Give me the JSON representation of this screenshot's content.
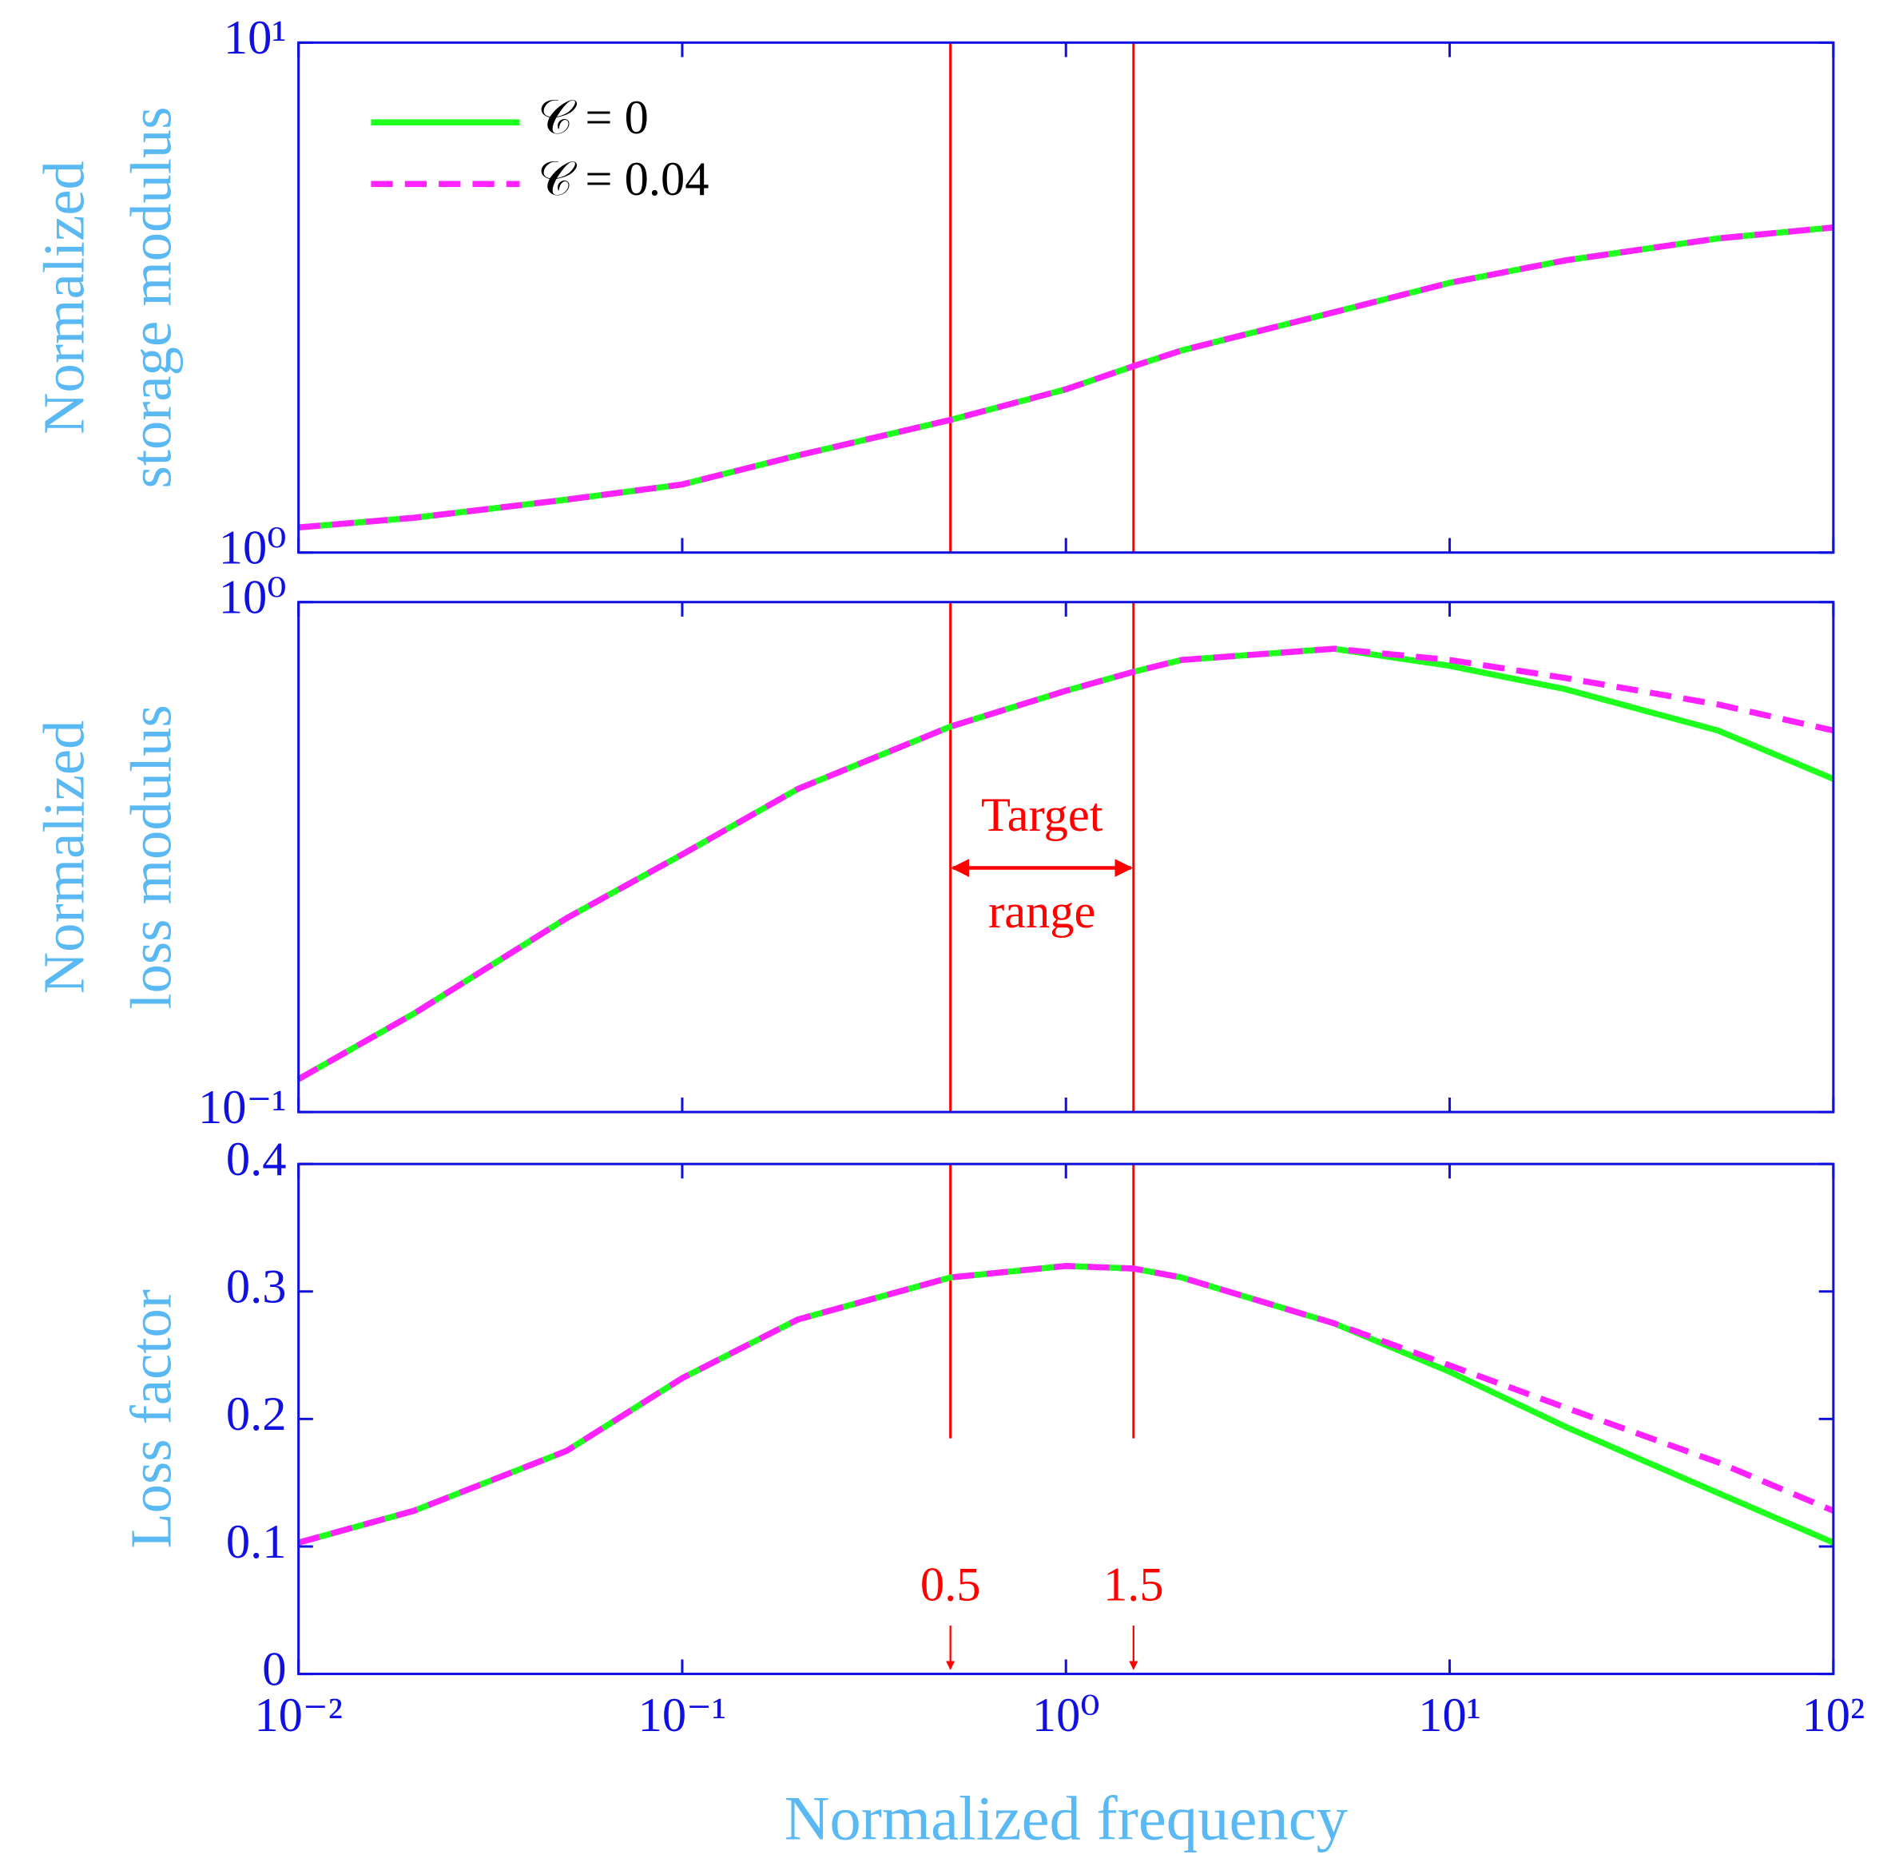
{
  "chart_data": [
    {
      "type": "line",
      "ylabel": [
        "Normalized",
        "storage modulus"
      ],
      "xscale": "log",
      "yscale": "log",
      "xlim": [
        0.01,
        100
      ],
      "xticks": [
        0.01,
        0.1,
        1,
        10,
        100
      ],
      "ylim": [
        1,
        10
      ],
      "yticks": [
        {
          "value": 1,
          "label": "10⁰"
        },
        {
          "value": 10,
          "label": "10¹"
        }
      ],
      "x": [
        0.01,
        0.02,
        0.05,
        0.1,
        0.2,
        0.5,
        1,
        1.5,
        2,
        5,
        10,
        20,
        50,
        100
      ],
      "series": [
        {
          "name": "𝒞 = 0",
          "color": "#1eff1e",
          "dash": false,
          "values": [
            1.12,
            1.17,
            1.27,
            1.36,
            1.55,
            1.82,
            2.09,
            2.32,
            2.49,
            2.96,
            3.38,
            3.74,
            4.13,
            4.34
          ]
        },
        {
          "name": "𝒞 = 0.04",
          "color": "#ff22ff",
          "dash": true,
          "values": [
            1.12,
            1.17,
            1.27,
            1.36,
            1.55,
            1.82,
            2.09,
            2.32,
            2.49,
            2.96,
            3.38,
            3.74,
            4.13,
            4.34
          ]
        }
      ],
      "legend": "upper left",
      "vlines": [
        0.5,
        1.5
      ],
      "vline_color": "#ff0000"
    },
    {
      "type": "line",
      "ylabel": [
        "Normalized",
        "loss modulus"
      ],
      "xscale": "log",
      "yscale": "log",
      "xlim": [
        0.01,
        100
      ],
      "xticks": [
        0.01,
        0.1,
        1,
        10,
        100
      ],
      "ylim": [
        0.1,
        1
      ],
      "yticks": [
        {
          "value": 0.1,
          "label": "10⁻¹"
        },
        {
          "value": 1,
          "label": "10⁰"
        }
      ],
      "x": [
        0.01,
        0.02,
        0.05,
        0.1,
        0.2,
        0.5,
        1,
        1.5,
        2,
        5,
        10,
        20,
        50,
        100
      ],
      "series": [
        {
          "name": "𝒞 = 0",
          "color": "#1eff1e",
          "dash": false,
          "values": [
            0.116,
            0.156,
            0.24,
            0.32,
            0.43,
            0.57,
            0.67,
            0.73,
            0.77,
            0.81,
            0.75,
            0.675,
            0.56,
            0.45
          ]
        },
        {
          "name": "𝒞 = 0.04",
          "color": "#ff22ff",
          "dash": true,
          "values": [
            0.116,
            0.156,
            0.24,
            0.32,
            0.43,
            0.57,
            0.67,
            0.73,
            0.77,
            0.81,
            0.77,
            0.71,
            0.63,
            0.56
          ]
        }
      ],
      "vlines": [
        0.5,
        1.5
      ],
      "vline_color": "#ff0000",
      "annotation": [
        "Target",
        "range"
      ]
    },
    {
      "type": "line",
      "ylabel": [
        "Loss factor"
      ],
      "xlabel": "Normalized frequency",
      "xscale": "log",
      "yscale": "linear",
      "xlim": [
        0.01,
        100
      ],
      "xticks": [
        {
          "value": 0.01,
          "label": "10⁻²"
        },
        {
          "value": 0.1,
          "label": "10⁻¹"
        },
        {
          "value": 1,
          "label": "10⁰"
        },
        {
          "value": 10,
          "label": "10¹"
        },
        {
          "value": 100,
          "label": "10²"
        }
      ],
      "ylim": [
        0,
        0.4
      ],
      "yticks": [
        0,
        0.1,
        0.2,
        0.3,
        0.4
      ],
      "x": [
        0.01,
        0.02,
        0.05,
        0.1,
        0.2,
        0.5,
        1,
        1.5,
        2,
        5,
        10,
        20,
        50,
        100
      ],
      "series": [
        {
          "name": "𝒞 = 0",
          "color": "#1eff1e",
          "dash": false,
          "values": [
            0.103,
            0.128,
            0.175,
            0.232,
            0.278,
            0.311,
            0.32,
            0.318,
            0.311,
            0.275,
            0.237,
            0.194,
            0.142,
            0.103
          ]
        },
        {
          "name": "𝒞 = 0.04",
          "color": "#ff22ff",
          "dash": true,
          "values": [
            0.103,
            0.128,
            0.175,
            0.232,
            0.278,
            0.311,
            0.32,
            0.318,
            0.311,
            0.275,
            0.242,
            0.209,
            0.166,
            0.128
          ]
        }
      ],
      "vlines": [
        0.5,
        1.5
      ],
      "vline_color": "#ff0000",
      "vline_labels": true
    }
  ]
}
